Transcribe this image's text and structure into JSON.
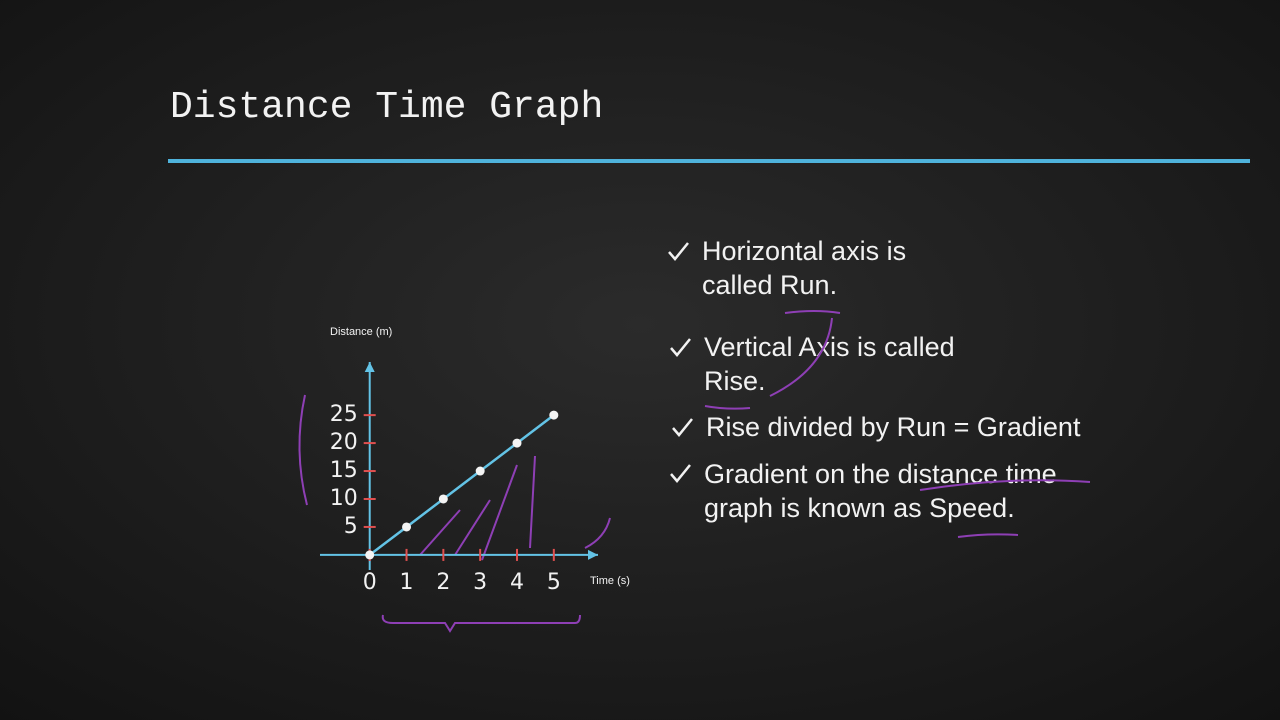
{
  "title": "Distance Time Graph",
  "bullets": [
    [
      "Horizontal axis is",
      "called Run."
    ],
    [
      "Vertical Axis is called",
      "Rise."
    ],
    [
      "Rise divided by Run = Gradient"
    ],
    [
      "Gradient on the distance time",
      "graph is known as Speed."
    ]
  ],
  "chart_data": {
    "type": "line",
    "x_label": "Time (s)",
    "y_label": "Distance (m)",
    "x": [
      0,
      1,
      2,
      3,
      4,
      5
    ],
    "series": [
      {
        "color": "#63c3e6",
        "values": [
          0,
          5,
          10,
          15,
          20,
          25
        ]
      }
    ],
    "xlim": [
      -1.35,
      6.2
    ],
    "ylim": [
      -2.7,
      34.5
    ],
    "xticks": [
      0,
      1,
      2,
      3,
      4,
      5
    ],
    "yticks": [
      5,
      10,
      15,
      20,
      25
    ]
  }
}
